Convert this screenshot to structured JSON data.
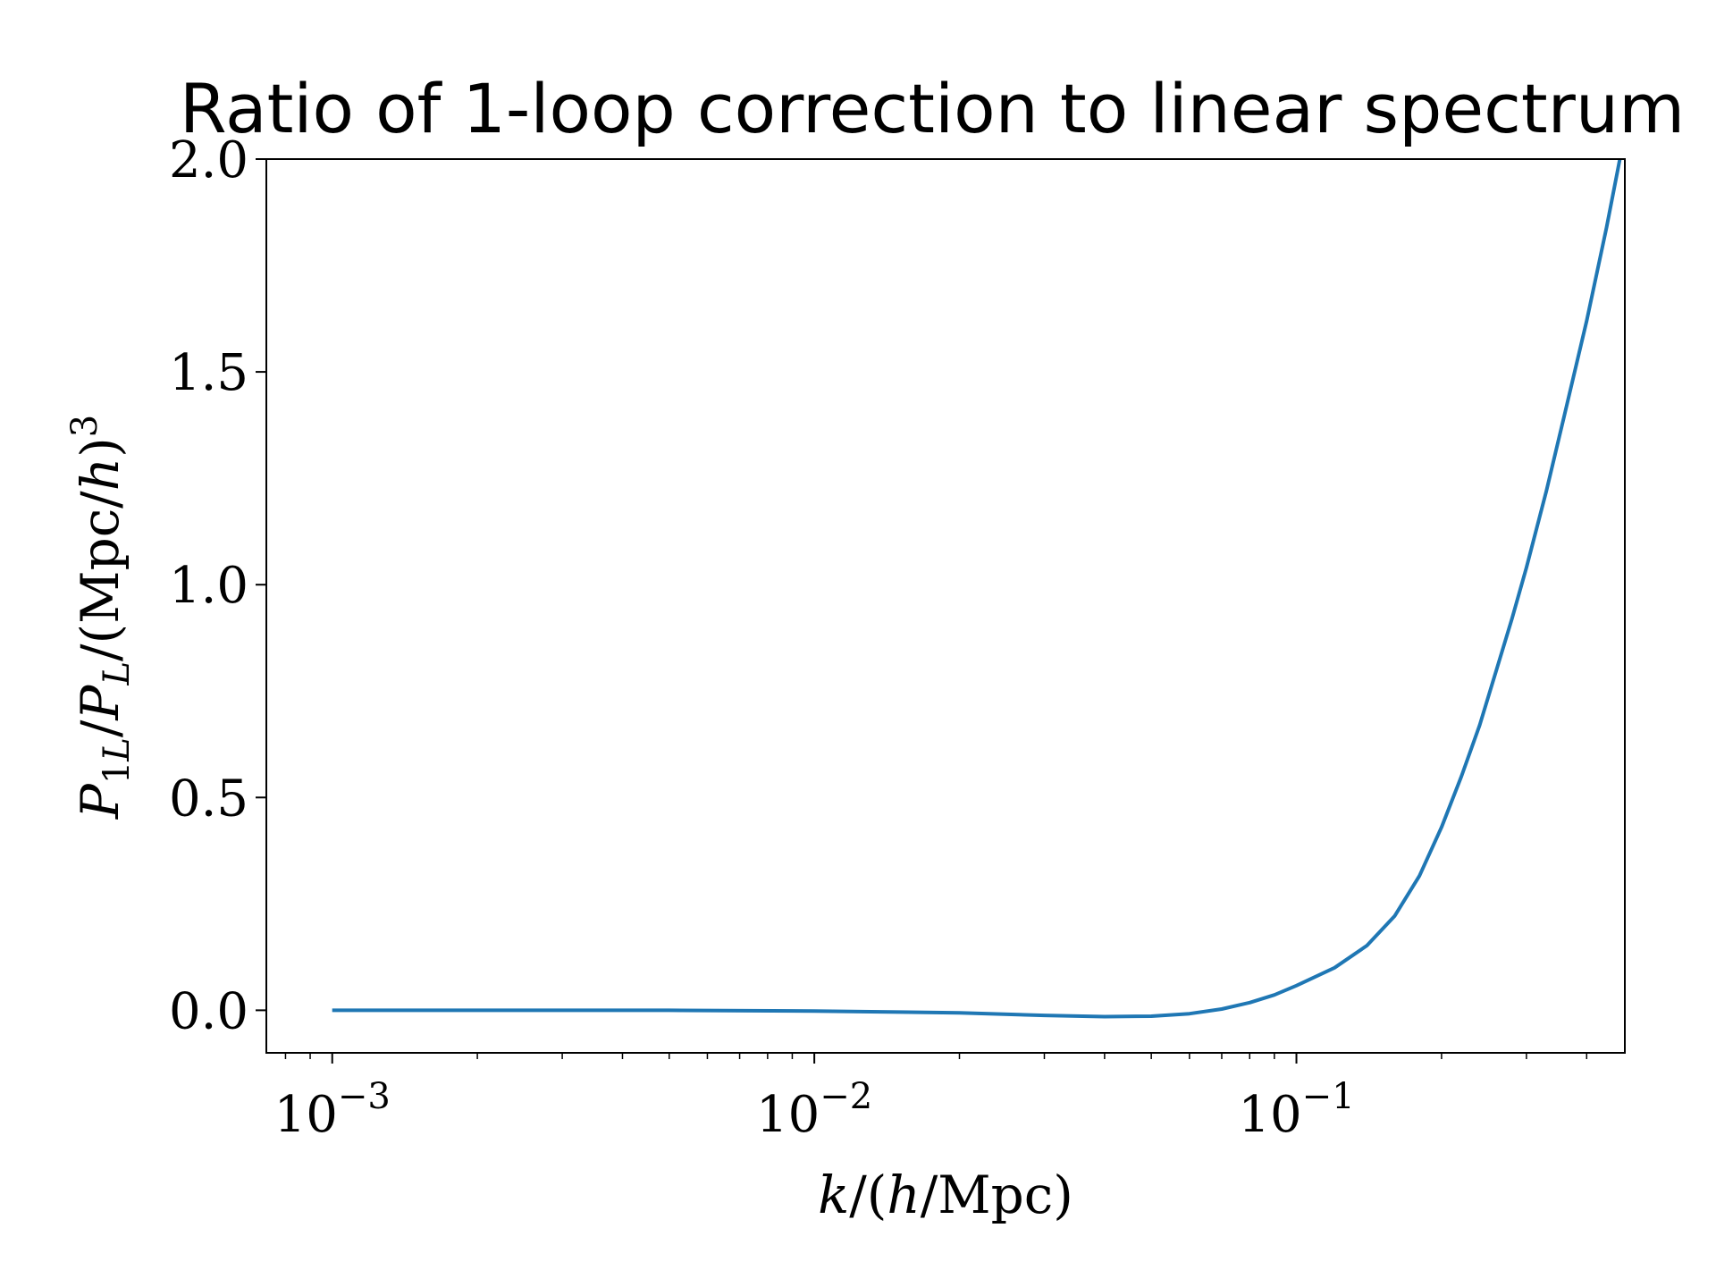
{
  "chart_data": {
    "type": "line",
    "title": "Ratio of 1-loop correction to linear spectrum",
    "xscale": "log",
    "xlim": [
      0.00073,
      0.48
    ],
    "ylim": [
      -0.1,
      2.0
    ],
    "grid": false,
    "color": "#1f77b4",
    "x_ticks": [
      {
        "value": 0.001,
        "base": "10",
        "exp": "−3"
      },
      {
        "value": 0.01,
        "base": "10",
        "exp": "−2"
      },
      {
        "value": 0.1,
        "base": "10",
        "exp": "−1"
      }
    ],
    "y_ticks": [
      {
        "value": 0.0,
        "label": "0.0"
      },
      {
        "value": 0.5,
        "label": "0.5"
      },
      {
        "value": 1.0,
        "label": "1.0"
      },
      {
        "value": 1.5,
        "label": "1.5"
      },
      {
        "value": 2.0,
        "label": "2.0"
      }
    ],
    "xlabel": "k/(h/Mpc)",
    "ylabel": "P_1L/P_L/(Mpc/h)^3",
    "series": [
      {
        "x": [
          0.001,
          0.002,
          0.005,
          0.01,
          0.02,
          0.03,
          0.04,
          0.05,
          0.06,
          0.07,
          0.08,
          0.09,
          0.1,
          0.12,
          0.14,
          0.16,
          0.18,
          0.2,
          0.22,
          0.24,
          0.26,
          0.28,
          0.3,
          0.33,
          0.36,
          0.4,
          0.44,
          0.48
        ],
        "y": [
          0.0,
          0.0,
          0.0,
          -0.002,
          -0.006,
          -0.012,
          -0.015,
          -0.014,
          -0.008,
          0.003,
          0.018,
          0.036,
          0.058,
          0.1,
          0.152,
          0.222,
          0.316,
          0.43,
          0.55,
          0.67,
          0.8,
          0.92,
          1.04,
          1.22,
          1.4,
          1.62,
          1.84,
          2.06
        ]
      }
    ]
  }
}
